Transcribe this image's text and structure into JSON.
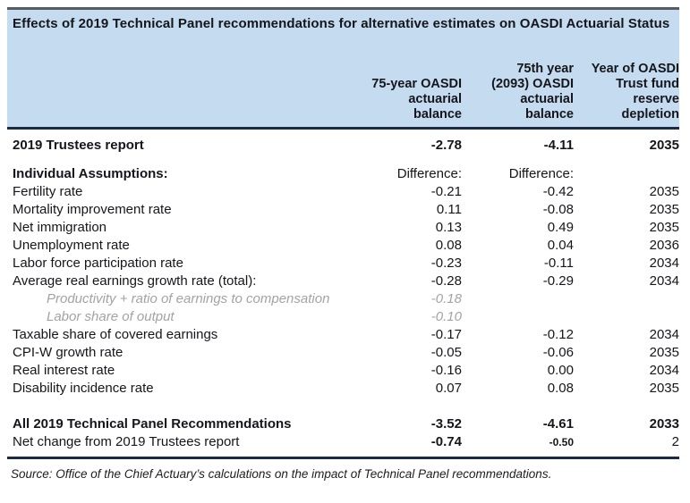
{
  "title": "Effects of 2019 Technical Panel recommendations for alternative estimates on OASDI Actuarial Status",
  "colors": {
    "header_bg": "#c5dcf0",
    "rule_top": "#565b63",
    "rule_dark": "#1c2b45",
    "sub_text": "#a3a3a3"
  },
  "table": {
    "columns": [
      "75-year OASDI\nactuarial\nbalance",
      "75th year\n(2093) OASDI\nactuarial\nbalance",
      "Year of OASDI\nTrust fund\nreserve\ndepletion"
    ],
    "rows": [
      {
        "label": "2019 Trustees report",
        "c1": "-2.78",
        "c2": "-4.11",
        "c3": "2035",
        "style": "bold",
        "space": ""
      },
      {
        "label": "Individual Assumptions:",
        "c1": "Difference:",
        "c2": "Difference:",
        "c3": "",
        "style": "headlabel",
        "space": "sm"
      },
      {
        "label": "Fertility rate",
        "c1": "-0.21",
        "c2": "-0.42",
        "c3": "2035",
        "style": "",
        "space": ""
      },
      {
        "label": "Mortality improvement rate",
        "c1": "0.11",
        "c2": "-0.08",
        "c3": "2035",
        "style": "",
        "space": ""
      },
      {
        "label": "Net immigration",
        "c1": "0.13",
        "c2": "0.49",
        "c3": "2035",
        "style": "",
        "space": ""
      },
      {
        "label": "Unemployment rate",
        "c1": "0.08",
        "c2": "0.04",
        "c3": "2036",
        "style": "",
        "space": ""
      },
      {
        "label": "Labor force participation rate",
        "c1": "-0.23",
        "c2": "-0.11",
        "c3": "2034",
        "style": "",
        "space": ""
      },
      {
        "label": "Average real earnings growth rate (total):",
        "c1": "-0.28",
        "c2": "-0.29",
        "c3": "2034",
        "style": "",
        "space": ""
      },
      {
        "label": "Productivity + ratio of earnings to compensation",
        "c1": "-0.18",
        "c2": "",
        "c3": "",
        "style": "sub",
        "space": ""
      },
      {
        "label": "Labor share of output",
        "c1": "-0.10",
        "c2": "",
        "c3": "",
        "style": "sub",
        "space": ""
      },
      {
        "label": "Taxable share of covered earnings",
        "c1": "-0.17",
        "c2": "-0.12",
        "c3": "2034",
        "style": "",
        "space": ""
      },
      {
        "label": "CPI-W growth rate",
        "c1": "-0.05",
        "c2": "-0.06",
        "c3": "2035",
        "style": "",
        "space": ""
      },
      {
        "label": "Real interest rate",
        "c1": "-0.16",
        "c2": "0.00",
        "c3": "2034",
        "style": "",
        "space": ""
      },
      {
        "label": "Disability incidence rate",
        "c1": "0.07",
        "c2": "0.08",
        "c3": "2035",
        "style": "",
        "space": ""
      },
      {
        "label": "All 2019 Technical Panel Recommendations",
        "c1": "-3.52",
        "c2": "-4.61",
        "c3": "2033",
        "style": "bold",
        "space": "lg"
      },
      {
        "label": "Net change from 2019 Trustees report",
        "c1": "-0.74",
        "c2": "-0.50",
        "c3": "2",
        "style": "netchange",
        "space": ""
      }
    ]
  },
  "source_note": "Source: Office of the Chief Actuary’s calculations on the impact of Technical Panel recommendations."
}
